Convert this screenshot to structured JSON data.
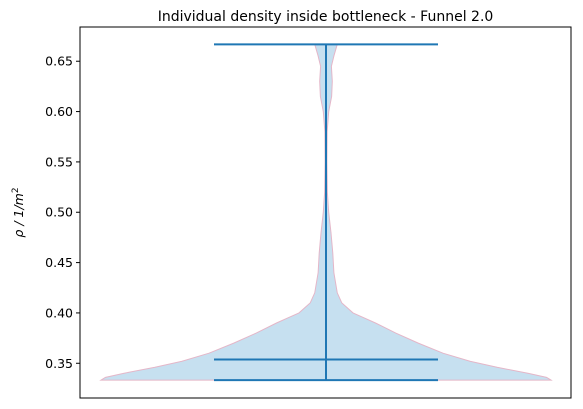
{
  "chart_data": {
    "type": "violin",
    "title": "Individual density inside bottleneck - Funnel 2.0",
    "ylabel_parts": [
      "ρ / 1/",
      "m",
      "2"
    ],
    "xlabel": "",
    "ylim": [
      0.3155,
      0.684
    ],
    "grid": false,
    "y_ticks": [
      0.35,
      0.4,
      0.45,
      0.5,
      0.55,
      0.6,
      0.65
    ],
    "y_tick_labels": [
      "0.35",
      "0.40",
      "0.45",
      "0.50",
      "0.55",
      "0.60",
      "0.65"
    ],
    "x_ticks": [],
    "fill_color": "#c6e0f0",
    "edge_color": "#e4b6c8",
    "line_color": "#1f77b4",
    "series": [
      {
        "min": 0.3333,
        "max": 0.6667,
        "median": 0.3538,
        "density_profile": [
          [
            0.3333,
            1.0
          ],
          [
            0.336,
            0.98
          ],
          [
            0.34,
            0.9
          ],
          [
            0.346,
            0.76
          ],
          [
            0.352,
            0.64
          ],
          [
            0.36,
            0.52
          ],
          [
            0.37,
            0.41
          ],
          [
            0.38,
            0.31
          ],
          [
            0.39,
            0.22
          ],
          [
            0.395,
            0.17
          ],
          [
            0.4,
            0.12
          ],
          [
            0.41,
            0.07
          ],
          [
            0.42,
            0.05
          ],
          [
            0.44,
            0.035
          ],
          [
            0.46,
            0.03
          ],
          [
            0.48,
            0.022
          ],
          [
            0.5,
            0.012
          ],
          [
            0.52,
            0.006
          ],
          [
            0.55,
            0.004
          ],
          [
            0.58,
            0.005
          ],
          [
            0.6,
            0.012
          ],
          [
            0.615,
            0.025
          ],
          [
            0.63,
            0.028
          ],
          [
            0.645,
            0.024
          ],
          [
            0.656,
            0.036
          ],
          [
            0.6667,
            0.05
          ]
        ]
      }
    ]
  }
}
